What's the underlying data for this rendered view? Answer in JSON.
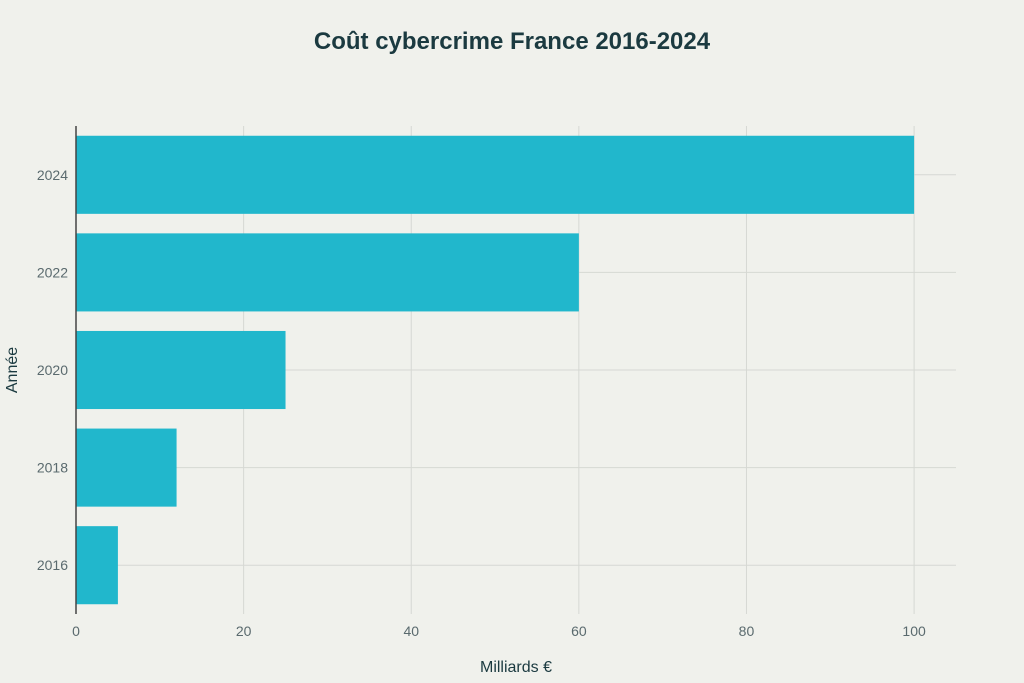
{
  "title": "Coût cybercrime France 2016-2024",
  "colors": {
    "bar": "#21b7cc",
    "grid": "#d6d8d3",
    "axis": "#444444",
    "text": "#1b3a40",
    "tick_text": "#5a6a6e",
    "background": "#f0f1ec"
  },
  "chart_data": {
    "type": "bar",
    "orientation": "horizontal",
    "title": "Coût cybercrime France 2016-2024",
    "xlabel": "Milliards €",
    "ylabel": "Année",
    "categories": [
      "2016",
      "2018",
      "2020",
      "2022",
      "2024"
    ],
    "values": [
      5,
      12,
      25,
      60,
      100
    ],
    "xlim": [
      0,
      105
    ],
    "xticks": [
      0,
      20,
      40,
      60,
      80,
      100
    ],
    "grid": true,
    "legend": "none"
  }
}
